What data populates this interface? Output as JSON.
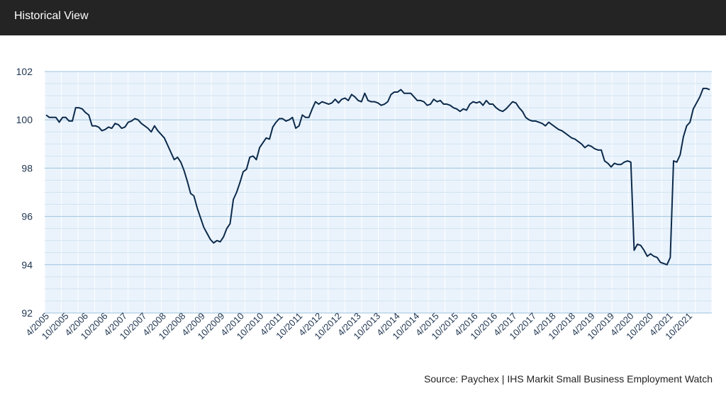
{
  "header": {
    "title": "Historical View"
  },
  "source": "Source: Paychex | IHS Markit Small Business Employment Watch",
  "colors": {
    "line": "#0c2a4a",
    "plot_bg": "#eaf3fc",
    "major_grid": "#9fc3dd",
    "minor_grid": "#d2e3f1",
    "header_bg": "#242424"
  },
  "chart_data": {
    "type": "line",
    "title": "",
    "xlabel": "",
    "ylabel": "",
    "ylim": [
      92,
      102
    ],
    "yticks": [
      "102",
      "100",
      "98",
      "96",
      "94",
      "92"
    ],
    "xticks": [
      "4/2005",
      "10/2005",
      "4/2006",
      "10/2006",
      "4/2007",
      "10/2007",
      "4/2008",
      "10/2008",
      "4/2009",
      "10/2009",
      "4/2010",
      "10/2010",
      "4/2011",
      "10/2011",
      "4/2012",
      "10/2012",
      "4/2013",
      "10/2013",
      "4/2014",
      "10/2014",
      "4/2015",
      "10/2015",
      "4/2016",
      "10/2016",
      "4/2017",
      "10/2017",
      "4/2018",
      "10/2018",
      "4/2019",
      "10/2019",
      "4/2020",
      "10/2020",
      "4/2021",
      "10/2021"
    ],
    "grid": true,
    "start": "4/2005",
    "series": [
      {
        "values": [
          100.2,
          100.1,
          100.1,
          100.1,
          99.9,
          100.1,
          100.1,
          99.95,
          99.95,
          100.5,
          100.5,
          100.45,
          100.3,
          100.2,
          99.75,
          99.75,
          99.7,
          99.55,
          99.6,
          99.7,
          99.65,
          99.85,
          99.8,
          99.65,
          99.7,
          99.9,
          99.95,
          100.05,
          100.0,
          99.85,
          99.75,
          99.65,
          99.5,
          99.75,
          99.55,
          99.4,
          99.25,
          98.95,
          98.65,
          98.35,
          98.45,
          98.25,
          97.9,
          97.45,
          96.95,
          96.85,
          96.35,
          95.95,
          95.55,
          95.3,
          95.05,
          94.9,
          95.0,
          94.95,
          95.15,
          95.5,
          95.7,
          96.7,
          97.0,
          97.4,
          97.85,
          97.95,
          98.45,
          98.5,
          98.35,
          98.85,
          99.05,
          99.25,
          99.2,
          99.7,
          99.9,
          100.05,
          100.05,
          99.95,
          100.0,
          100.1,
          99.65,
          99.75,
          100.2,
          100.1,
          100.1,
          100.45,
          100.75,
          100.65,
          100.75,
          100.7,
          100.65,
          100.7,
          100.85,
          100.7,
          100.85,
          100.9,
          100.8,
          101.05,
          100.95,
          100.8,
          100.75,
          101.1,
          100.8,
          100.75,
          100.75,
          100.7,
          100.6,
          100.65,
          100.75,
          101.05,
          101.15,
          101.15,
          101.25,
          101.1,
          101.1,
          101.1,
          100.95,
          100.8,
          100.8,
          100.75,
          100.6,
          100.65,
          100.85,
          100.75,
          100.8,
          100.65,
          100.65,
          100.6,
          100.5,
          100.45,
          100.35,
          100.45,
          100.4,
          100.65,
          100.75,
          100.7,
          100.75,
          100.6,
          100.8,
          100.65,
          100.65,
          100.5,
          100.4,
          100.35,
          100.45,
          100.6,
          100.75,
          100.7,
          100.5,
          100.35,
          100.1,
          100.0,
          99.95,
          99.95,
          99.9,
          99.85,
          99.75,
          99.9,
          99.8,
          99.7,
          99.6,
          99.55,
          99.45,
          99.35,
          99.25,
          99.2,
          99.1,
          99.0,
          98.85,
          98.95,
          98.9,
          98.8,
          98.75,
          98.75,
          98.3,
          98.2,
          98.05,
          98.2,
          98.15,
          98.15,
          98.25,
          98.3,
          98.25,
          94.6,
          94.85,
          94.8,
          94.6,
          94.35,
          94.45,
          94.35,
          94.3,
          94.1,
          94.05,
          94.0,
          94.3,
          98.3,
          98.25,
          98.55,
          99.3,
          99.75,
          99.9,
          100.45,
          100.7,
          100.95,
          101.3,
          101.3,
          101.25
        ]
      }
    ]
  }
}
